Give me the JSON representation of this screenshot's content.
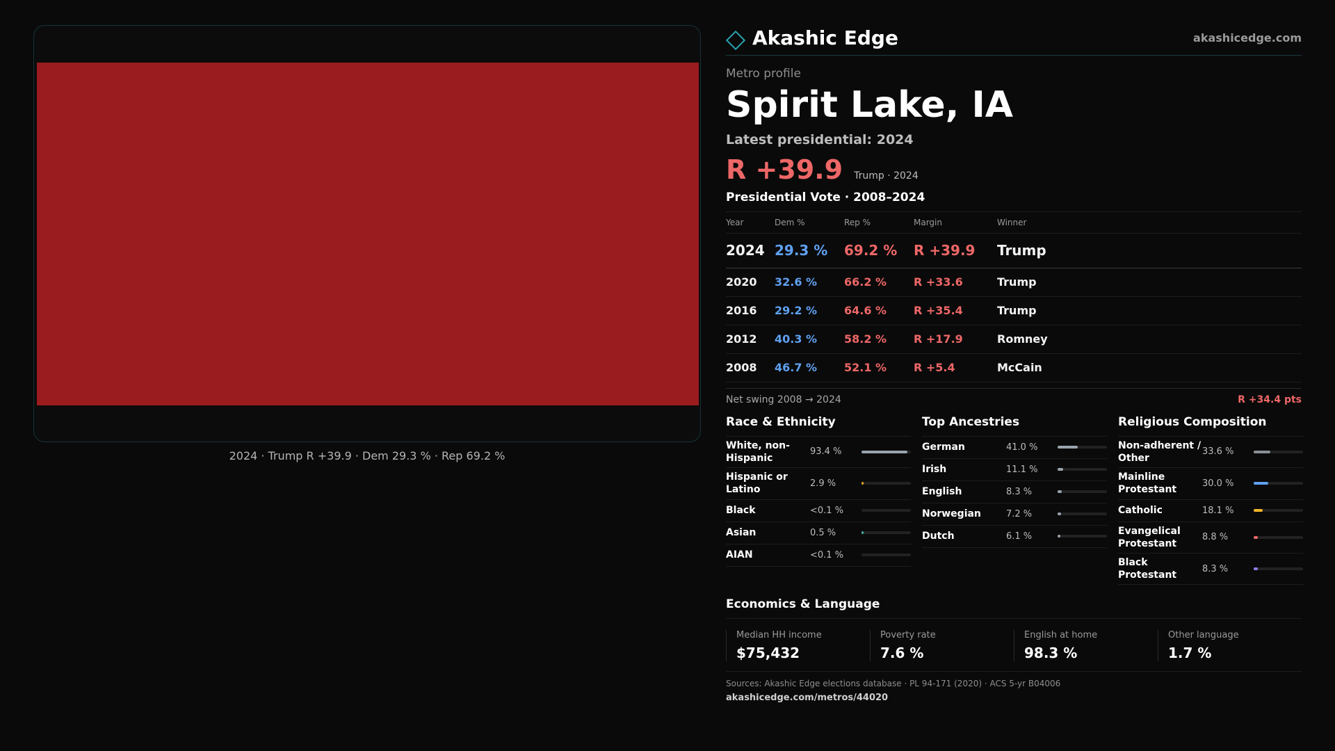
{
  "map": {
    "fill_color": "#9b1c1f",
    "caption": "2024 · Trump R +39.9 · Dem 29.3 % · Rep 69.2 %"
  },
  "header": {
    "brand_name": "Akashic Edge",
    "brand_icon": "diamond-icon",
    "site": "akashicedge.com"
  },
  "profile": {
    "kicker": "Metro profile",
    "title": "Spirit Lake, IA",
    "latest": "Latest presidential: 2024",
    "big_margin": "R +39.9",
    "big_sub": "Trump · 2024"
  },
  "vote": {
    "title": "Presidential Vote · 2008–2024",
    "headers": [
      "Year",
      "Dem %",
      "Rep %",
      "Margin",
      "Winner"
    ],
    "rows": [
      {
        "year": "2024",
        "dem": "29.3 %",
        "rep": "69.2 %",
        "margin": "R +39.9",
        "winner": "Trump"
      },
      {
        "year": "2020",
        "dem": "32.6 %",
        "rep": "66.2 %",
        "margin": "R +33.6",
        "winner": "Trump"
      },
      {
        "year": "2016",
        "dem": "29.2 %",
        "rep": "64.6 %",
        "margin": "R +35.4",
        "winner": "Trump"
      },
      {
        "year": "2012",
        "dem": "40.3 %",
        "rep": "58.2 %",
        "margin": "R +17.9",
        "winner": "Romney"
      },
      {
        "year": "2008",
        "dem": "46.7 %",
        "rep": "52.1 %",
        "margin": "R +5.4",
        "winner": "McCain"
      }
    ],
    "swing_label": "Net swing 2008 → 2024",
    "swing_value": "R +34.4 pts"
  },
  "race": {
    "title": "Race & Ethnicity",
    "items": [
      {
        "label": "White, non-Hispanic",
        "value": "93.4 %",
        "level": 0.934,
        "color": "#9aa3ad"
      },
      {
        "label": "Hispanic or Latino",
        "value": "2.9 %",
        "level": 0.029,
        "color": "#e0a020"
      },
      {
        "label": "Black",
        "value": "<0.1 %",
        "level": 0.0,
        "color": "#9aa3ad"
      },
      {
        "label": "Asian",
        "value": "0.5 %",
        "level": 0.005,
        "color": "#3fb09a"
      },
      {
        "label": "AIAN",
        "value": "<0.1 %",
        "level": 0.0,
        "color": "#9aa3ad"
      }
    ]
  },
  "ancestry": {
    "title": "Top Ancestries",
    "items": [
      {
        "label": "German",
        "value": "41.0 %",
        "level": 0.41,
        "color": "#9aa3ad"
      },
      {
        "label": "Irish",
        "value": "11.1 %",
        "level": 0.111,
        "color": "#9aa3ad"
      },
      {
        "label": "English",
        "value": "8.3 %",
        "level": 0.083,
        "color": "#9aa3ad"
      },
      {
        "label": "Norwegian",
        "value": "7.2 %",
        "level": 0.072,
        "color": "#9aa3ad"
      },
      {
        "label": "Dutch",
        "value": "6.1 %",
        "level": 0.061,
        "color": "#9aa3ad"
      }
    ]
  },
  "religion": {
    "title": "Religious Composition",
    "items": [
      {
        "label": "Non-adherent / Other",
        "value": "33.6 %",
        "level": 0.336,
        "color": "#8a8f96"
      },
      {
        "label": "Mainline Protestant",
        "value": "30.0 %",
        "level": 0.3,
        "color": "#5fa0f0"
      },
      {
        "label": "Catholic",
        "value": "18.1 %",
        "level": 0.181,
        "color": "#f0b429"
      },
      {
        "label": "Evangelical Protestant",
        "value": "8.8 %",
        "level": 0.088,
        "color": "#ee6767"
      },
      {
        "label": "Black Protestant",
        "value": "8.3 %",
        "level": 0.083,
        "color": "#8b7ff0"
      }
    ]
  },
  "econ": {
    "title": "Economics & Language",
    "stats": [
      {
        "label": "Median HH income",
        "value": "$75,432"
      },
      {
        "label": "Poverty rate",
        "value": "7.6 %"
      },
      {
        "label": "English at home",
        "value": "98.3 %"
      },
      {
        "label": "Other language",
        "value": "1.7 %"
      }
    ]
  },
  "sources": {
    "text": "Sources: Akashic Edge elections database · PL 94-171 (2020) · ACS 5-yr B04006",
    "url": "akashicedge.com/metros/44020"
  }
}
